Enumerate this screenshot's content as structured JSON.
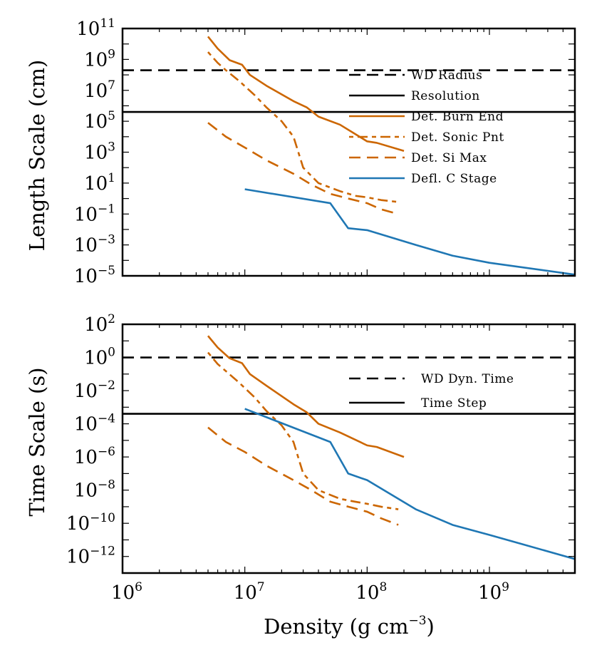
{
  "chart_data": [
    {
      "type": "line",
      "panel": "top",
      "xscale": "log",
      "yscale": "log",
      "xlim": [
        1000000,
        5000000000
      ],
      "ylim": [
        1e-05,
        100000000000
      ],
      "ylabel": "Length Scale (cm)",
      "xlabel": "",
      "yticks": [
        {
          "base": "10",
          "exp": "11"
        },
        {
          "base": "10",
          "exp": "9"
        },
        {
          "base": "10",
          "exp": "7"
        },
        {
          "base": "10",
          "exp": "5"
        },
        {
          "base": "10",
          "exp": "3"
        },
        {
          "base": "10",
          "exp": "1"
        },
        {
          "base": "10",
          "exp": "−1"
        },
        {
          "base": "10",
          "exp": "−3"
        },
        {
          "base": "10",
          "exp": "−5"
        }
      ],
      "legend_position": "right",
      "series": [
        {
          "name": "WD Radius",
          "style": "dashed",
          "color": "#000000",
          "hline": 200000000
        },
        {
          "name": "Resolution",
          "style": "solid",
          "color": "#000000",
          "hline": 400000
        },
        {
          "name": "Det. Burn End",
          "style": "solid",
          "color": "#cc6600",
          "x": [
            5000000,
            6000000,
            7500000,
            9500000,
            11000000,
            15000000,
            25000000,
            32000000,
            40000000,
            60000000,
            100000000,
            120000000,
            200000000
          ],
          "y": [
            30000000000,
            5000000000,
            900000000,
            450000000,
            100000000,
            20000000,
            2000000,
            800000,
            200000,
            60000,
            5000,
            4000,
            1200
          ]
        },
        {
          "name": "Det. Sonic Pnt",
          "style": "dashdot",
          "color": "#cc6600",
          "x": [
            5000000,
            6000000,
            7000000,
            9000000,
            12000000,
            15000000,
            20000000,
            25000000,
            30000000,
            40000000,
            60000000,
            80000000,
            100000000,
            130000000,
            180000000
          ],
          "y": [
            3000000000,
            600000000,
            200000000,
            40000000,
            5000000,
            800000,
            100000,
            10000,
            100,
            10,
            3,
            1.5,
            1.2,
            0.8,
            0.6
          ]
        },
        {
          "name": "Det. Si Max",
          "style": "dashed",
          "color": "#cc6600",
          "x": [
            5000000,
            7000000,
            10000000,
            15000000,
            25000000,
            35000000,
            50000000,
            70000000,
            100000000,
            130000000,
            180000000
          ],
          "y": [
            80000,
            10000,
            2000,
            300,
            40,
            8,
            2,
            1,
            0.5,
            0.2,
            0.1
          ]
        },
        {
          "name": "Defl. C Stage",
          "style": "solid",
          "color": "#1f77b4",
          "x": [
            10000000,
            50000000,
            70000000,
            100000000,
            250000000,
            500000000,
            1000000000,
            5000000000
          ],
          "y": [
            4,
            0.5,
            0.012,
            0.009,
            0.001,
            0.0002,
            7e-05,
            1.2e-05
          ]
        }
      ]
    },
    {
      "type": "line",
      "panel": "bottom",
      "xscale": "log",
      "yscale": "log",
      "xlim": [
        1000000,
        5000000000
      ],
      "ylim": [
        1e-13,
        100
      ],
      "ylabel": "Time Scale (s)",
      "xlabel": "Density (g cm−3)",
      "xlabel_main": "Density (g cm",
      "xlabel_exp": "−3",
      "xlabel_close": ")",
      "xticks": [
        {
          "base": "10",
          "exp": "6"
        },
        {
          "base": "10",
          "exp": "7"
        },
        {
          "base": "10",
          "exp": "8"
        },
        {
          "base": "10",
          "exp": "9"
        }
      ],
      "yticks": [
        {
          "base": "10",
          "exp": "2"
        },
        {
          "base": "10",
          "exp": "0"
        },
        {
          "base": "10",
          "exp": "−2"
        },
        {
          "base": "10",
          "exp": "−4"
        },
        {
          "base": "10",
          "exp": "−6"
        },
        {
          "base": "10",
          "exp": "−8"
        },
        {
          "base": "10",
          "exp": "−10"
        },
        {
          "base": "10",
          "exp": "−12"
        }
      ],
      "legend_position": "right",
      "series": [
        {
          "name": "WD Dyn. Time",
          "style": "dashed",
          "color": "#000000",
          "hline": 1
        },
        {
          "name": "Time Step",
          "style": "solid",
          "color": "#000000",
          "hline": 0.0004
        },
        {
          "name": "Det. Burn End",
          "style": "solid",
          "color": "#cc6600",
          "x": [
            5000000,
            6000000,
            7500000,
            9500000,
            11000000,
            15000000,
            25000000,
            32000000,
            40000000,
            60000000,
            100000000,
            120000000,
            200000000
          ],
          "y": [
            20,
            4,
            0.9,
            0.45,
            0.1,
            0.02,
            0.0015,
            0.0005,
            0.0001,
            3e-05,
            5e-06,
            4e-06,
            1e-06
          ]
        },
        {
          "name": "Det. Sonic Pnt",
          "style": "dashdot",
          "color": "#cc6600",
          "x": [
            5000000,
            6000000,
            7000000,
            9000000,
            12000000,
            15000000,
            20000000,
            25000000,
            30000000,
            40000000,
            60000000,
            80000000,
            100000000,
            130000000,
            180000000
          ],
          "y": [
            2,
            0.4,
            0.15,
            0.03,
            0.004,
            0.0006,
            8e-05,
            8e-06,
            1e-07,
            1e-08,
            3e-09,
            2e-09,
            1.5e-09,
            1e-09,
            7e-10
          ]
        },
        {
          "name": "Det. Si Max",
          "style": "dashed",
          "color": "#cc6600",
          "x": [
            5000000,
            7000000,
            10000000,
            15000000,
            25000000,
            35000000,
            50000000,
            70000000,
            100000000,
            130000000,
            180000000
          ],
          "y": [
            6e-05,
            8e-06,
            2e-06,
            3e-07,
            4e-08,
            1e-08,
            2e-09,
            1e-09,
            5e-10,
            2e-10,
            8e-11
          ]
        },
        {
          "name": "Defl. C Stage",
          "style": "solid",
          "color": "#1f77b4",
          "x": [
            10000000,
            50000000,
            70000000,
            100000000,
            250000000,
            500000000,
            1000000000,
            5000000000
          ],
          "y": [
            0.0008,
            8e-06,
            1e-07,
            4e-08,
            7e-10,
            8e-11,
            2e-11,
            7e-13
          ]
        }
      ]
    }
  ]
}
